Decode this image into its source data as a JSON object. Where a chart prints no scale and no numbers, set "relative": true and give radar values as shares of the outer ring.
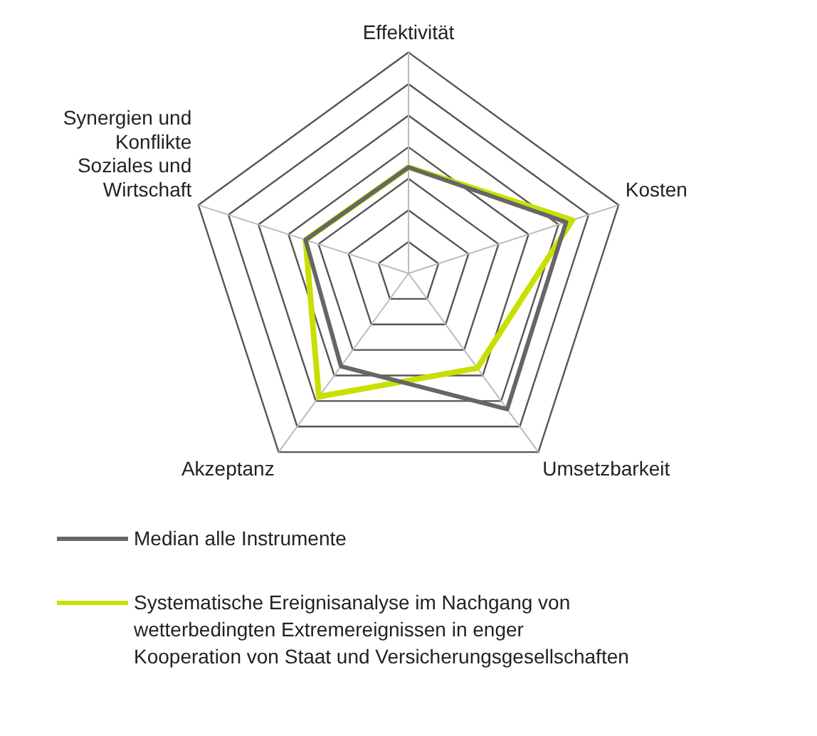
{
  "chart_data": {
    "type": "radar",
    "relative": true,
    "categories": [
      "Effektivität",
      "Kosten",
      "Umsetzbarkeit",
      "Akzeptanz",
      "Synergien und\nKonflikte\nSoziales und\nWirtschaft"
    ],
    "series": [
      {
        "name": "Median alle Instrumente",
        "color": "#666666",
        "values": [
          0.48,
          0.75,
          0.76,
          0.52,
          0.49
        ]
      },
      {
        "name": "Systematische Ereignisanalyse im Nachgang von\nwetterbedingten Extremereignissen in enger\nKooperation von Staat und Versicherungsgesellschaften",
        "color": "#c8e000",
        "values": [
          0.48,
          0.78,
          0.53,
          0.69,
          0.49
        ]
      }
    ],
    "legend": "bottom",
    "grid": true,
    "marker": "none"
  }
}
